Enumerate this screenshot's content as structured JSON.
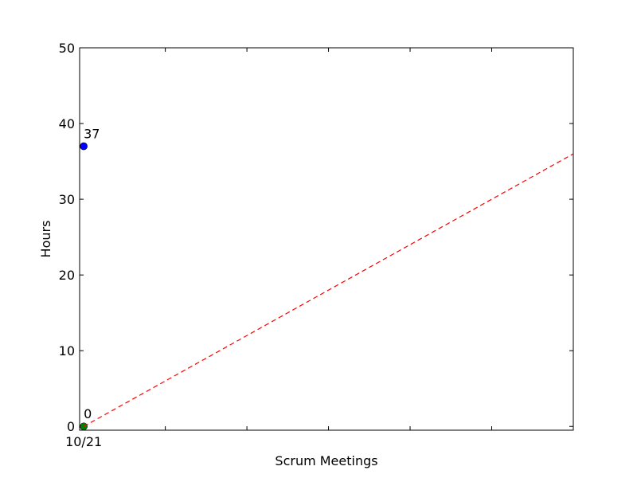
{
  "chart_data": {
    "type": "line",
    "xlabel": "Scrum Meetings",
    "ylabel": "Hours",
    "ylim": [
      -0.5,
      50
    ],
    "yticks": [
      0,
      10,
      20,
      30,
      40,
      50
    ],
    "xlim": [
      -0.05,
      6
    ],
    "xticks": [
      1,
      2,
      3,
      4,
      5,
      6
    ],
    "x_tick_labels": [
      {
        "x": 0,
        "label": "10/21"
      }
    ],
    "series": [
      {
        "values": [
          {
            "x": 0,
            "y": 37
          }
        ],
        "color": "#0000ff",
        "style": "marker",
        "point_labels": [
          "37"
        ]
      },
      {
        "values": [
          {
            "x": 0,
            "y": 0
          }
        ],
        "color": "#008000",
        "style": "marker",
        "point_labels": [
          "0"
        ]
      },
      {
        "values": [
          {
            "x": 0,
            "y": 0
          },
          {
            "x": 6,
            "y": 36
          }
        ],
        "color": "#ff0000",
        "style": "dashed"
      }
    ],
    "grid": false,
    "legend": "none"
  }
}
